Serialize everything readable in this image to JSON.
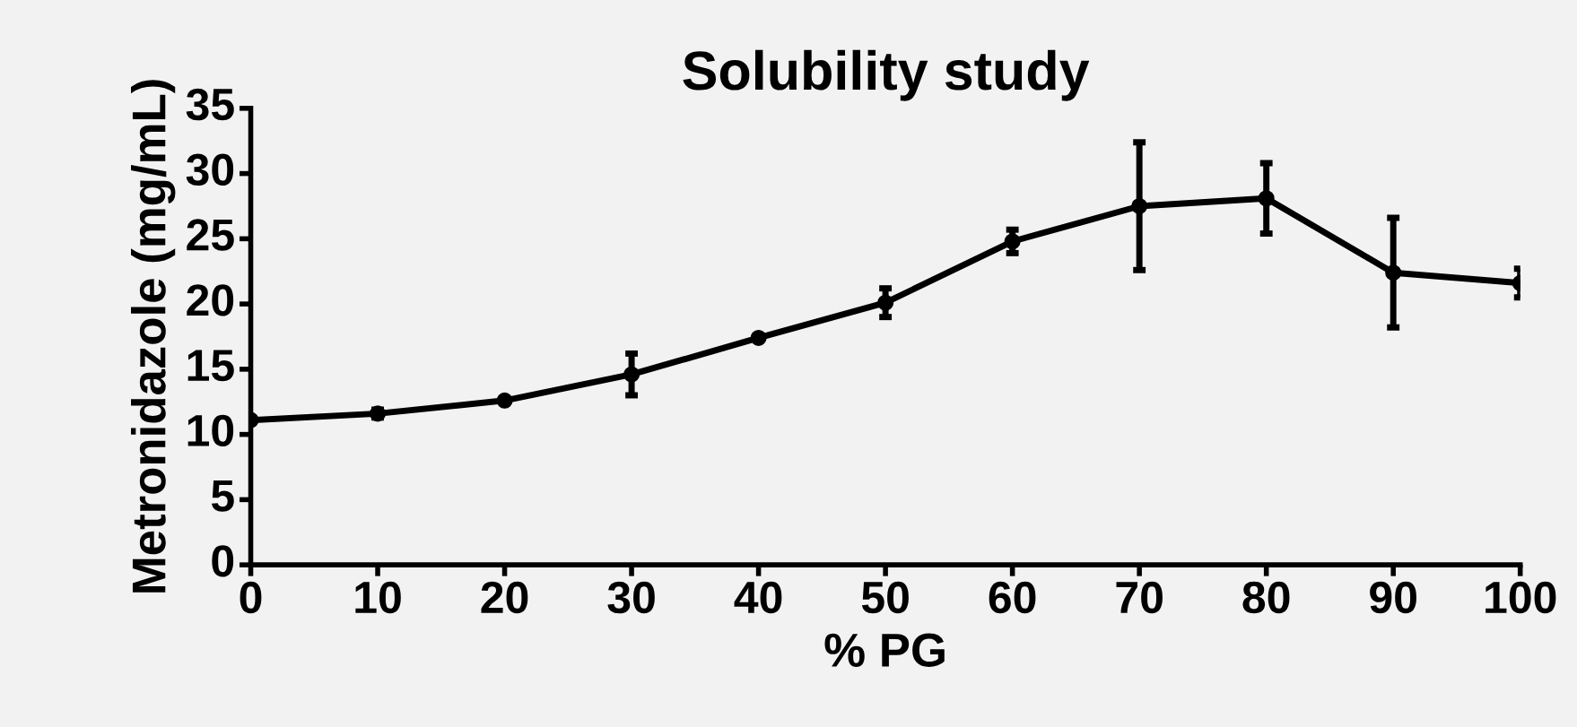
{
  "chart_data": {
    "type": "line",
    "title": "Solubility study",
    "xlabel": "% PG",
    "ylabel": "Metronidazole (mg/mL)",
    "x": [
      0,
      10,
      20,
      30,
      40,
      50,
      60,
      70,
      80,
      90,
      100
    ],
    "series": [
      {
        "color": "#000000",
        "values": [
          11.1,
          11.6,
          12.6,
          14.6,
          17.4,
          20.1,
          24.8,
          27.5,
          28.1,
          22.4,
          21.6
        ],
        "errors": [
          null,
          0.3,
          null,
          1.6,
          null,
          1.1,
          0.9,
          4.9,
          2.7,
          4.2,
          1.1
        ]
      }
    ],
    "xlim": [
      0,
      100
    ],
    "xticks": [
      0,
      10,
      20,
      30,
      40,
      50,
      60,
      70,
      80,
      90,
      100
    ],
    "ylim": [
      0,
      35
    ],
    "yticks": [
      0,
      5,
      10,
      15,
      20,
      25,
      30,
      35
    ],
    "grid": false,
    "legend": false,
    "marker": "circle",
    "line_style": "solid"
  }
}
